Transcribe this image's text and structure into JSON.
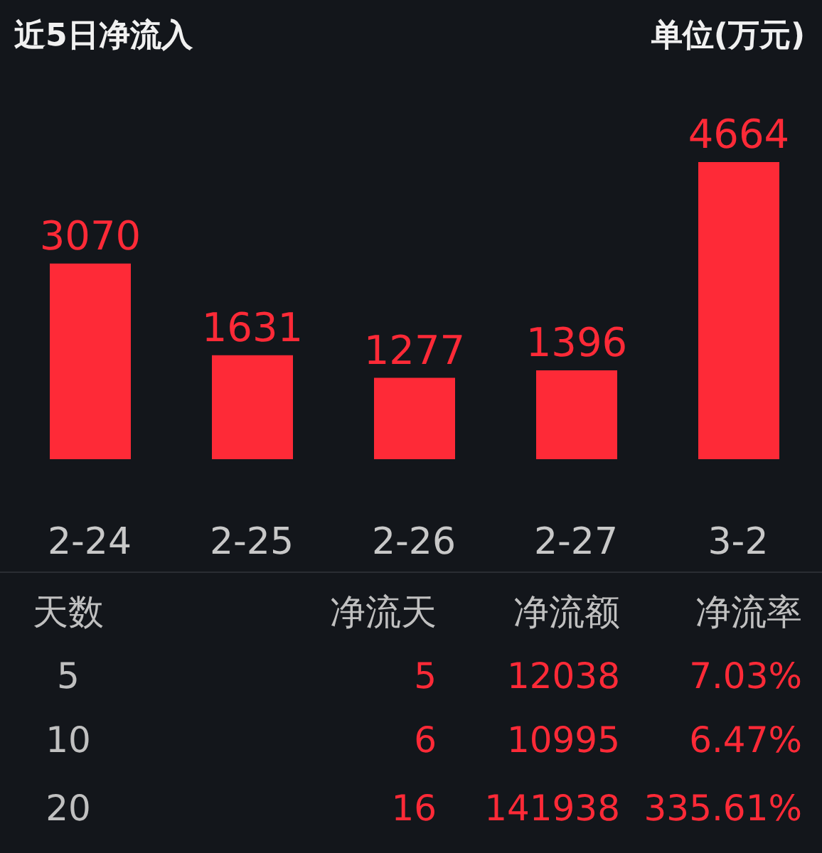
{
  "chart_data": {
    "type": "bar",
    "title": "近5日净流入",
    "subtitle": "单位(万元)",
    "categories": [
      "2-24",
      "2-25",
      "2-26",
      "2-27",
      "3-2"
    ],
    "values": [
      3070,
      1631,
      1277,
      1396,
      4664
    ],
    "color": "#fe2a37",
    "data_labels": true,
    "grid": false,
    "legend": false,
    "annotations": [
      "天数",
      "净流天",
      "净流额",
      "净流率",
      "5",
      "5",
      "12038",
      "7.03%",
      "10",
      "6",
      "10995",
      "6.47%",
      "20",
      "16",
      "141938",
      "335.61%"
    ]
  }
}
